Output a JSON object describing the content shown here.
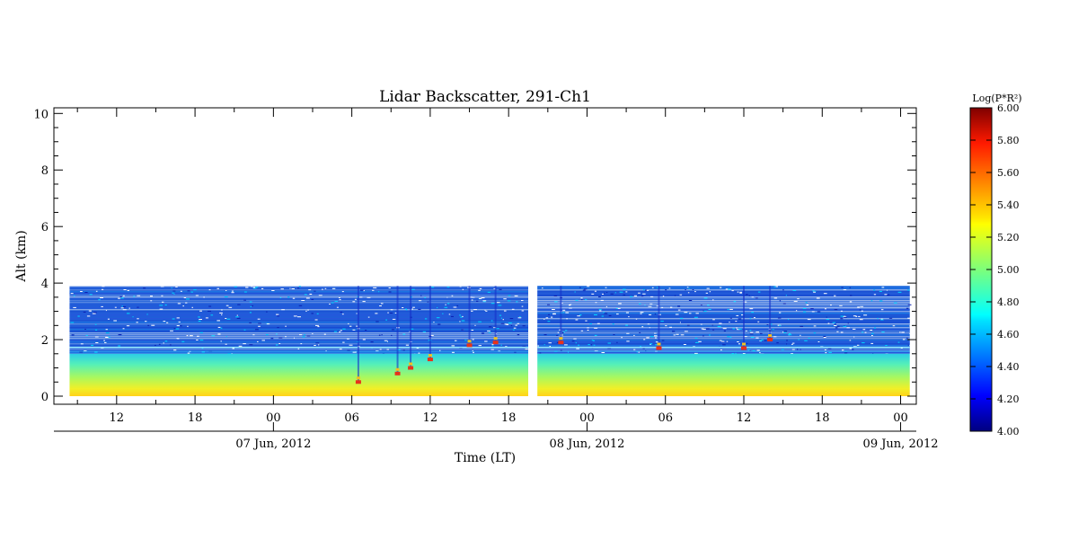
{
  "chart_data": {
    "type": "heatmap",
    "title": "Lidar Backscatter, 291-Ch1",
    "ylabel": "Alt (km)",
    "xlabel": "Time (LT)",
    "ylim": [
      0,
      10.2
    ],
    "yticks": [
      0,
      2,
      4,
      6,
      8,
      10
    ],
    "hour_ticks": [
      "12",
      "18",
      "00",
      "06",
      "12",
      "18",
      "00",
      "06",
      "12",
      "18",
      "00"
    ],
    "hour_tick_positions": [
      12,
      18,
      24,
      30,
      36,
      42,
      48,
      54,
      60,
      66,
      72
    ],
    "date_labels": [
      "07 Jun, 2012",
      "08 Jun, 2012",
      "09 Jun, 2012"
    ],
    "date_positions": [
      24,
      48,
      72
    ],
    "xlim": [
      7.2,
      73.2
    ],
    "data_segments": [
      [
        8.4,
        43.5
      ],
      [
        44.2,
        72.7
      ]
    ],
    "data_top_altitude": 3.9,
    "colorbar": {
      "title": "Log(P*R²)",
      "range": [
        4.0,
        6.0
      ],
      "ticks": [
        "4.00",
        "4.20",
        "4.40",
        "4.60",
        "4.80",
        "5.00",
        "5.20",
        "5.40",
        "5.60",
        "5.80",
        "6.00"
      ],
      "colormap": "jet"
    },
    "features": [
      {
        "type": "cloud-base",
        "x": 30.5,
        "altitude": 0.5
      },
      {
        "type": "cloud-base",
        "x": 33.5,
        "altitude": 0.8
      },
      {
        "type": "cloud-base",
        "x": 34.5,
        "altitude": 1.0
      },
      {
        "type": "cloud-base",
        "x": 36.0,
        "altitude": 1.3
      },
      {
        "type": "cloud-base",
        "x": 39.0,
        "altitude": 1.8
      },
      {
        "type": "cloud-base",
        "x": 41.0,
        "altitude": 1.9
      },
      {
        "type": "cloud-base",
        "x": 46.0,
        "altitude": 1.9
      },
      {
        "type": "cloud-base",
        "x": 53.5,
        "altitude": 1.7
      },
      {
        "type": "cloud-base",
        "x": 60.0,
        "altitude": 1.7
      },
      {
        "type": "cloud-base",
        "x": 62.0,
        "altitude": 2.0
      }
    ]
  }
}
